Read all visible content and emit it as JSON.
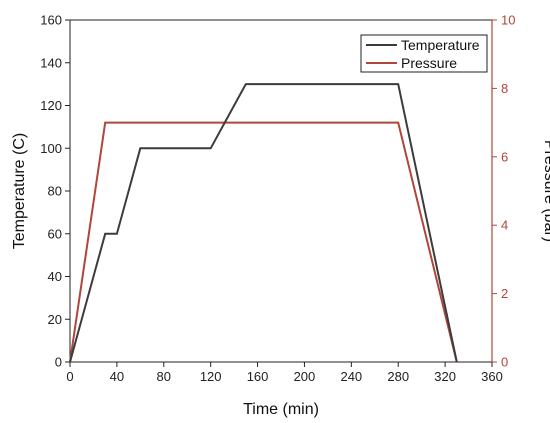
{
  "chart_data": {
    "type": "line",
    "xlabel": "Time (min)",
    "ylabel_left": "Temperature (C)",
    "ylabel_right": "Pressure (bar)",
    "xlim": [
      0,
      360
    ],
    "ylim_left": [
      0,
      160
    ],
    "ylim_right": [
      0,
      10
    ],
    "x_ticks": [
      0,
      40,
      80,
      120,
      160,
      200,
      240,
      280,
      320,
      360
    ],
    "y_left_ticks": [
      0,
      20,
      40,
      60,
      80,
      100,
      120,
      140,
      160
    ],
    "y_right_ticks": [
      0,
      2,
      4,
      6,
      8,
      10
    ],
    "grid": false,
    "legend_position": "top-right",
    "series": [
      {
        "name": "Temperature",
        "axis": "left",
        "color": "#3c3c3c",
        "x": [
          0,
          30,
          40,
          60,
          120,
          150,
          280,
          330
        ],
        "y": [
          0,
          60,
          60,
          100,
          100,
          130,
          130,
          0
        ]
      },
      {
        "name": "Pressure",
        "axis": "right",
        "color": "#b0453a",
        "x": [
          0,
          30,
          280,
          330
        ],
        "y": [
          0,
          7,
          7,
          0
        ]
      }
    ],
    "right_axis_color": "#b0453a"
  }
}
